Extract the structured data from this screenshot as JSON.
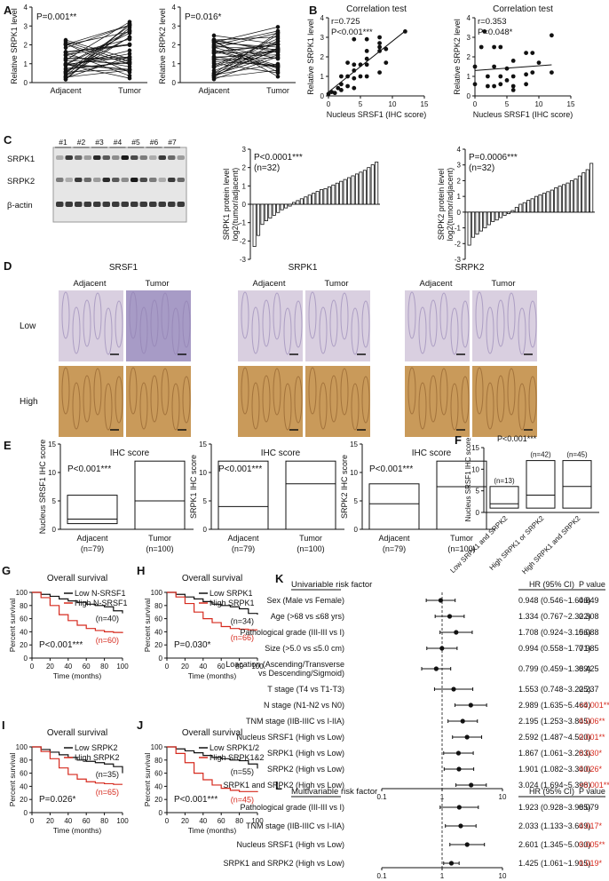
{
  "panels": [
    "A",
    "B",
    "C",
    "D",
    "E",
    "F",
    "G",
    "H",
    "I",
    "J",
    "K",
    "L"
  ],
  "panel_A": {
    "left": {
      "ylabel": "Relative SRPK1 level",
      "p": "P=0.001**",
      "ticks": [
        "0",
        "1",
        "2",
        "3",
        "4"
      ],
      "cats": [
        "Adjacent",
        "Tumor"
      ]
    },
    "right": {
      "ylabel": "Relative SRPK2 level",
      "p": "P=0.016*",
      "ticks": [
        "0",
        "1",
        "2",
        "3",
        "4"
      ],
      "cats": [
        "Adjacent",
        "Tumor"
      ]
    }
  },
  "panel_B": {
    "left": {
      "title": "Correlation test",
      "r": "r=0.725",
      "p": "P<0.001***",
      "ylabel": "Relative SRPK1 level",
      "xlabel": "Nucleus SRSF1 (IHC score)",
      "xticks": [
        "0",
        "5",
        "10",
        "15"
      ],
      "yticks": [
        "0",
        "1",
        "2",
        "3",
        "4"
      ]
    },
    "right": {
      "title": "Correlation test",
      "r": "r=0.353",
      "p": "P=0.048*",
      "ylabel": "Relative SRPK2 level",
      "xlabel": "Nucleus SRSF1 (IHC score)",
      "xticks": [
        "0",
        "5",
        "10",
        "15"
      ],
      "yticks": [
        "0",
        "1",
        "2",
        "3",
        "4"
      ]
    }
  },
  "panel_C": {
    "lanes": [
      "#1",
      "#2",
      "#3",
      "#4",
      "#5",
      "#6",
      "#7"
    ],
    "bands": [
      "SRPK1",
      "SRPK2",
      "β-actin"
    ],
    "left": {
      "p": "P<0.0001***",
      "n": "(n=32)",
      "ylabel1": "SRPK1 protein level",
      "ylabel2": "log2(tumor/adjacent)",
      "yticks": [
        "-3",
        "-2",
        "-1",
        "0",
        "1",
        "2",
        "3"
      ]
    },
    "right": {
      "p": "P=0.0006***",
      "n": "(n=32)",
      "ylabel1": "SRPK2 protein level",
      "ylabel2": "log2(tumor/adjacent)",
      "yticks": [
        "-3",
        "-2",
        "-1",
        "0",
        "1",
        "2",
        "3",
        "4"
      ]
    }
  },
  "panel_D": {
    "groups": [
      "SRSF1",
      "SRPK1",
      "SRPK2"
    ],
    "cols": [
      "Adjacent",
      "Tumor"
    ],
    "rows": [
      "Low",
      "High"
    ]
  },
  "panel_E": {
    "header": "IHC score",
    "plots": [
      {
        "ylabel": "Nucleus SRSF1 IHC score",
        "p": "P<0.001***"
      },
      {
        "ylabel": "SRPK1 IHC score",
        "p": "P<0.001***"
      },
      {
        "ylabel": "SRPK2 IHC score",
        "p": "P<0.001***"
      }
    ],
    "cats": [
      "Adjacent",
      "Tumor"
    ],
    "ns": [
      "(n=79)",
      "(n=100)"
    ],
    "yticks": [
      "0",
      "5",
      "10",
      "15"
    ]
  },
  "panel_F": {
    "p": "P<0.001***",
    "ylabel": "Nucleus SRSF1 IHC score",
    "ns": [
      "(n=13)",
      "(n=42)",
      "(n=45)"
    ],
    "cats": [
      "Low SRPK1 and SRPK2",
      "High SRPK1 or SRPK2",
      "High SRPK1 and SRPK2"
    ],
    "yticks": [
      "0",
      "5",
      "10",
      "15"
    ]
  },
  "surv": {
    "title": "Overall survival",
    "ylabel": "Percent survival",
    "xlabel": "Time (months)",
    "xticks": [
      "0",
      "20",
      "40",
      "60",
      "80",
      "100"
    ],
    "yticks": [
      "0",
      "20",
      "40",
      "60",
      "80",
      "100"
    ],
    "G": {
      "low": "Low N-SRSF1",
      "high": "High N-SRSF1",
      "nlow": "(n=40)",
      "nhigh": "(n=60)",
      "p": "P<0.001***"
    },
    "H": {
      "low": "Low SRPK1",
      "high": "High SRPK1",
      "nlow": "(n=34)",
      "nhigh": "(n=66)",
      "p": "P=0.030*"
    },
    "I": {
      "low": "Low SRPK2",
      "high": "High SRPK2",
      "nlow": "(n=35)",
      "nhigh": "(n=65)",
      "p": "P=0.026*"
    },
    "J": {
      "low": "Low SRPK1/2",
      "high": "High SRPK1&2",
      "nlow": "(n=55)",
      "nhigh": "(n=45)",
      "p": "P<0.001***"
    }
  },
  "panel_K": {
    "header": "Univariable risk factor",
    "hr_header": "HR (95% CI)",
    "p_header": "P value",
    "rows": [
      {
        "f": "Sex (Male vs Female)",
        "hr": "0.948 (0.546~1.646)",
        "p": "0.849",
        "sig": false
      },
      {
        "f": "Age (>68 vs ≤68 yrs)",
        "hr": "1.334 (0.767~2.322)",
        "p": "0.308",
        "sig": false
      },
      {
        "f": "Pathological grade (III-III vs I)",
        "hr": "1.708 (0.924~3.156)",
        "p": "0.088",
        "sig": false
      },
      {
        "f": "Size (>5.0 vs ≤5.0 cm)",
        "hr": "0.994 (0.558~1.771)",
        "p": "0.985",
        "sig": false
      },
      {
        "f": "Loacation (Ascending/Transverse",
        "f2": "vs Descending/Sigmoid)",
        "hr": "0.799 (0.459~1.389)",
        "p": "0.425",
        "sig": false
      },
      {
        "f": "T stage (T4 vs T1-T3)",
        "hr": "1.553 (0.748~3.225)",
        "p": "0.237",
        "sig": false
      },
      {
        "f": "N stage (N1-N2 vs N0)",
        "hr": "2.989 (1.635~5.464)",
        "p": "<0.001***",
        "sig": true
      },
      {
        "f": "TNM stage (IIB-IIIC vs I-IIA)",
        "hr": "2.195 (1.253~3.845)",
        "p": "0.006**",
        "sig": true
      },
      {
        "f": "Nucleus SRSF1 (High vs Low)",
        "hr": "2.592 (1.487~4.520)",
        "p": "0.001**",
        "sig": true
      },
      {
        "f": "SRPK1 (High vs Low)",
        "hr": "1.867 (1.061~3.283)",
        "p": "0.030*",
        "sig": true
      },
      {
        "f": "SRPK2 (High vs Low)",
        "hr": "1.901 (1.082~3.340)",
        "p": "0.026*",
        "sig": true
      },
      {
        "f": "SRPK1 and SRPK2 (High vs Low)",
        "hr": "3.024 (1.694~5.398)",
        "p": "<0.001***",
        "sig": true
      }
    ],
    "axis": [
      "0.1",
      "1",
      "10"
    ]
  },
  "panel_L": {
    "header": "Multivariable risk factor",
    "hr_header": "HR (95% CI)",
    "p_header": "P value",
    "rows": [
      {
        "f": "Pathological grade (III-III vs I)",
        "hr": "1.923 (0.928~3.985)",
        "p": "0.079",
        "sig": false
      },
      {
        "f": "TNM stage (IIB-IIIC vs I-IIA)",
        "hr": "2.033 (1.133~3.649)",
        "p": "0.017*",
        "sig": true
      },
      {
        "f": "Nucleus SRSF1 (High vs Low)",
        "hr": "2.601 (1.345~5.030)",
        "p": "0.005**",
        "sig": true
      },
      {
        "f": "SRPK1 and SRPK2 (High vs Low)",
        "hr": "1.425 (1.061~1.915)",
        "p": "0.019*",
        "sig": true
      }
    ],
    "axis": [
      "0.1",
      "1",
      "10"
    ]
  },
  "colors": {
    "black": "#111111",
    "red": "#d62a1e",
    "stain": "#c99a5a",
    "stain_low": "#b7a7c9"
  },
  "chart_data": [
    {
      "type": "scatter",
      "panel": "B-left",
      "x": [
        0,
        0.5,
        1,
        1.5,
        2,
        2,
        2,
        3,
        3,
        3,
        4,
        4,
        4,
        4,
        4,
        5,
        5,
        6,
        6,
        6,
        6,
        6,
        8,
        8,
        8,
        8,
        8,
        9,
        9,
        12
      ],
      "y": [
        0.1,
        0.2,
        0.15,
        0.4,
        0.3,
        0.6,
        1.0,
        0.5,
        1.0,
        1.7,
        0.4,
        0.9,
        1.3,
        1.6,
        2.9,
        1.0,
        1.6,
        1.0,
        1.6,
        1.9,
        2.3,
        2.9,
        1.2,
        2.3,
        2.5,
        3.0,
        2.7,
        1.7,
        2.4,
        3.3
      ],
      "xlim": [
        0,
        15
      ],
      "ylim": [
        0,
        4
      ]
    },
    {
      "type": "scatter",
      "panel": "B-right",
      "x": [
        0,
        0,
        1,
        1.5,
        2,
        2,
        3,
        3,
        3,
        4,
        4,
        4,
        5,
        5,
        6,
        6,
        6,
        6,
        8,
        8,
        8,
        9,
        9,
        10,
        12,
        12
      ],
      "y": [
        0.6,
        1.5,
        2.5,
        3.3,
        0.5,
        1.0,
        0.5,
        1.5,
        2.5,
        0.6,
        1.0,
        2.5,
        0.8,
        1.4,
        0.3,
        0.5,
        1.0,
        1.8,
        0.6,
        1.1,
        2.2,
        1.2,
        2.2,
        1.7,
        3.1,
        1.2
      ],
      "xlim": [
        0,
        15
      ],
      "ylim": [
        0,
        4
      ]
    },
    {
      "type": "bar",
      "panel": "C-left",
      "values": [
        -2.3,
        -1.7,
        -1.1,
        -0.9,
        -0.75,
        -0.6,
        -0.45,
        -0.3,
        -0.2,
        -0.1,
        0.1,
        0.2,
        0.3,
        0.4,
        0.5,
        0.6,
        0.7,
        0.8,
        0.85,
        0.95,
        1.05,
        1.15,
        1.25,
        1.35,
        1.45,
        1.55,
        1.65,
        1.75,
        1.85,
        2.0,
        2.15,
        2.3
      ],
      "ylim": [
        -3,
        3
      ]
    },
    {
      "type": "bar",
      "panel": "C-right",
      "values": [
        -2.1,
        -1.6,
        -1.4,
        -1.2,
        -1.0,
        -0.8,
        -0.6,
        -0.5,
        -0.35,
        -0.2,
        -0.1,
        0.1,
        0.3,
        0.5,
        0.6,
        0.75,
        0.85,
        1.0,
        1.1,
        1.2,
        1.3,
        1.4,
        1.55,
        1.65,
        1.75,
        1.85,
        2.0,
        2.1,
        2.3,
        2.5,
        2.7,
        3.1
      ],
      "ylim": [
        -3,
        4
      ]
    },
    {
      "type": "bar",
      "panel": "E",
      "series": [
        {
          "name": "Nucleus SRSF1",
          "min": [
            1,
            0
          ],
          "median": [
            1.8,
            5
          ],
          "max": [
            6,
            12
          ]
        },
        {
          "name": "SRPK1",
          "min": [
            0,
            0
          ],
          "median": [
            4,
            8
          ],
          "max": [
            12,
            12
          ]
        },
        {
          "name": "SRPK2",
          "min": [
            0,
            0
          ],
          "median": [
            4.5,
            7.5
          ],
          "max": [
            8,
            12
          ]
        }
      ],
      "categories": [
        "Adjacent",
        "Tumor"
      ],
      "ylim": [
        0,
        15
      ]
    },
    {
      "type": "bar",
      "panel": "F",
      "categories": [
        "Low SRPK1 and SRPK2",
        "High SRPK1 or SRPK2",
        "High SRPK1 and SRPK2"
      ],
      "min": [
        1,
        1,
        1
      ],
      "median": [
        2,
        4,
        6
      ],
      "max": [
        6,
        12,
        12
      ],
      "ylim": [
        0,
        15
      ]
    },
    {
      "type": "line",
      "panel": "G-J",
      "x": [
        0,
        10,
        20,
        30,
        40,
        50,
        60,
        70,
        80,
        90,
        100
      ],
      "series": [
        {
          "name": "Low N-SRSF1",
          "values": [
            100,
            97,
            94,
            90,
            87,
            85,
            82,
            80,
            78,
            72,
            68
          ]
        },
        {
          "name": "High N-SRSF1",
          "values": [
            100,
            92,
            80,
            66,
            57,
            50,
            45,
            42,
            40,
            39,
            38
          ]
        },
        {
          "name": "Low SRPK1",
          "values": [
            100,
            97,
            93,
            90,
            86,
            82,
            80,
            78,
            75,
            68,
            66
          ]
        },
        {
          "name": "High SRPK1",
          "values": [
            100,
            93,
            83,
            70,
            60,
            54,
            48,
            45,
            44,
            43,
            43
          ]
        },
        {
          "name": "Low SRPK2",
          "values": [
            100,
            96,
            92,
            88,
            84,
            80,
            78,
            76,
            74,
            70,
            60
          ]
        },
        {
          "name": "High SRPK2",
          "values": [
            100,
            93,
            82,
            68,
            58,
            51,
            47,
            45,
            44,
            43,
            43
          ]
        },
        {
          "name": "Low SRPK1/2",
          "values": [
            100,
            97,
            94,
            91,
            87,
            84,
            82,
            80,
            79,
            74,
            67
          ]
        },
        {
          "name": "High SRPK1&2",
          "values": [
            100,
            90,
            76,
            60,
            50,
            42,
            37,
            34,
            32,
            32,
            31
          ]
        }
      ],
      "xlim": [
        0,
        100
      ],
      "ylim": [
        0,
        100
      ]
    },
    {
      "type": "scatter",
      "panel": "K",
      "hr": [
        0.948,
        1.334,
        1.708,
        0.994,
        0.799,
        1.553,
        2.989,
        2.195,
        2.592,
        1.867,
        1.901,
        3.024
      ],
      "lo": [
        0.546,
        0.767,
        0.924,
        0.558,
        0.459,
        0.748,
        1.635,
        1.253,
        1.487,
        1.061,
        1.082,
        1.694
      ],
      "hi": [
        1.646,
        2.322,
        3.156,
        1.771,
        1.389,
        3.225,
        5.464,
        3.845,
        4.52,
        3.283,
        3.34,
        5.398
      ],
      "xlim": [
        0.1,
        10
      ]
    },
    {
      "type": "scatter",
      "panel": "L",
      "hr": [
        1.923,
        2.033,
        2.601,
        1.425
      ],
      "lo": [
        0.928,
        1.133,
        1.345,
        1.061
      ],
      "hi": [
        3.985,
        3.649,
        5.03,
        1.915
      ],
      "xlim": [
        0.1,
        10
      ]
    }
  ]
}
